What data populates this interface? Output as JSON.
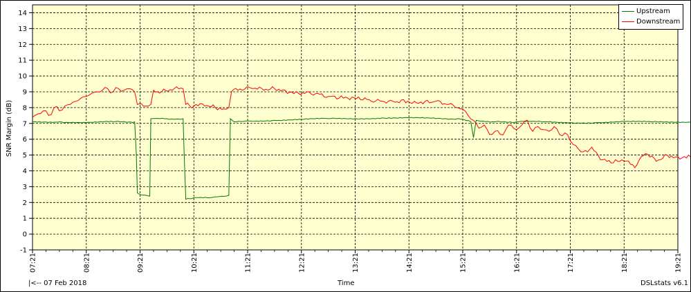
{
  "app": {
    "name": "DSLstats v6.1"
  },
  "footer": {
    "date_label": "|<-- 07 Feb 2018",
    "center_label": "Time",
    "version_label": "DSLstats v6.1"
  },
  "legend": {
    "items": [
      {
        "label": "Upstream",
        "color": "#007a00"
      },
      {
        "label": "Downstream",
        "color": "#ff0000"
      }
    ]
  },
  "chart_data": {
    "type": "line",
    "title": "",
    "xlabel": "Time",
    "ylabel": "SNR Margin (dB)",
    "ylim": [
      -1,
      14.5
    ],
    "y_ticks": [
      -1,
      0,
      1,
      2,
      3,
      4,
      5,
      6,
      7,
      8,
      9,
      10,
      11,
      12,
      13,
      14
    ],
    "x_ticks": [
      "07:21",
      "08:21",
      "09:21",
      "10:21",
      "11:21",
      "12:21",
      "13:21",
      "14:21",
      "15:21",
      "16:21",
      "17:21",
      "18:21",
      "19:21"
    ],
    "grid": true,
    "legend_position": "top-right",
    "background_color": "#ffffd0",
    "series": [
      {
        "name": "Upstream",
        "color": "#007a00",
        "points": [
          [
            0,
            7.1
          ],
          [
            0.5,
            7.1
          ],
          [
            1.0,
            7.05
          ],
          [
            1.5,
            7.1
          ],
          [
            1.9,
            7.1
          ],
          [
            1.93,
            5.0
          ],
          [
            1.95,
            2.6
          ],
          [
            2.0,
            2.5
          ],
          [
            2.18,
            2.4
          ],
          [
            2.2,
            7.3
          ],
          [
            2.5,
            7.3
          ],
          [
            2.8,
            7.3
          ],
          [
            2.82,
            5.0
          ],
          [
            2.85,
            2.2
          ],
          [
            3.0,
            2.3
          ],
          [
            3.3,
            2.3
          ],
          [
            3.6,
            2.4
          ],
          [
            3.65,
            2.45
          ],
          [
            3.68,
            7.3
          ],
          [
            3.75,
            7.1
          ],
          [
            4.0,
            7.15
          ],
          [
            4.5,
            7.2
          ],
          [
            5.0,
            7.25
          ],
          [
            5.5,
            7.3
          ],
          [
            6.0,
            7.3
          ],
          [
            6.5,
            7.35
          ],
          [
            7.0,
            7.35
          ],
          [
            7.5,
            7.3
          ],
          [
            7.9,
            7.3
          ],
          [
            8.15,
            7.1
          ],
          [
            8.2,
            6.1
          ],
          [
            8.25,
            7.2
          ],
          [
            8.6,
            7.1
          ],
          [
            9.0,
            7.1
          ],
          [
            9.5,
            7.1
          ],
          [
            10.0,
            7.05
          ],
          [
            10.5,
            7.05
          ],
          [
            11.0,
            7.1
          ],
          [
            11.5,
            7.1
          ],
          [
            12.0,
            7.1
          ],
          [
            12.5,
            7.1
          ],
          [
            12.9,
            7.2
          ]
        ]
      },
      {
        "name": "Downstream",
        "color": "#ff0000",
        "points": [
          [
            0,
            7.4
          ],
          [
            0.1,
            7.6
          ],
          [
            0.2,
            7.8
          ],
          [
            0.3,
            7.5
          ],
          [
            0.4,
            8.0
          ],
          [
            0.5,
            7.8
          ],
          [
            0.6,
            8.1
          ],
          [
            0.7,
            8.2
          ],
          [
            0.8,
            8.4
          ],
          [
            0.9,
            8.6
          ],
          [
            1.0,
            8.7
          ],
          [
            1.1,
            8.9
          ],
          [
            1.2,
            9.0
          ],
          [
            1.3,
            9.1
          ],
          [
            1.4,
            9.2
          ],
          [
            1.5,
            9.0
          ],
          [
            1.6,
            9.2
          ],
          [
            1.7,
            9.1
          ],
          [
            1.8,
            9.2
          ],
          [
            1.9,
            9.0
          ],
          [
            1.95,
            8.2
          ],
          [
            2.1,
            8.1
          ],
          [
            2.2,
            8.2
          ],
          [
            2.25,
            9.1
          ],
          [
            2.4,
            9.0
          ],
          [
            2.6,
            9.1
          ],
          [
            2.8,
            9.2
          ],
          [
            2.85,
            8.2
          ],
          [
            3.0,
            8.1
          ],
          [
            3.2,
            8.1
          ],
          [
            3.4,
            8.0
          ],
          [
            3.6,
            7.9
          ],
          [
            3.65,
            8.0
          ],
          [
            3.7,
            9.0
          ],
          [
            3.9,
            9.1
          ],
          [
            4.1,
            9.2
          ],
          [
            4.3,
            9.1
          ],
          [
            4.5,
            9.2
          ],
          [
            4.7,
            9.1
          ],
          [
            4.9,
            9.0
          ],
          [
            5.1,
            9.0
          ],
          [
            5.3,
            8.9
          ],
          [
            5.5,
            8.7
          ],
          [
            5.7,
            8.6
          ],
          [
            5.9,
            8.5
          ],
          [
            6.1,
            8.5
          ],
          [
            6.3,
            8.4
          ],
          [
            6.5,
            8.4
          ],
          [
            6.7,
            8.4
          ],
          [
            6.9,
            8.5
          ],
          [
            7.1,
            8.4
          ],
          [
            7.3,
            8.4
          ],
          [
            7.5,
            8.4
          ],
          [
            7.7,
            8.2
          ],
          [
            7.9,
            8.0
          ],
          [
            8.0,
            7.9
          ],
          [
            8.1,
            7.5
          ],
          [
            8.2,
            7.2
          ],
          [
            8.3,
            6.7
          ],
          [
            8.4,
            6.9
          ],
          [
            8.5,
            6.3
          ],
          [
            8.6,
            6.5
          ],
          [
            8.7,
            6.3
          ],
          [
            8.8,
            6.6
          ],
          [
            8.9,
            6.9
          ],
          [
            9.0,
            6.6
          ],
          [
            9.1,
            6.9
          ],
          [
            9.2,
            7.2
          ],
          [
            9.3,
            6.5
          ],
          [
            9.4,
            6.8
          ],
          [
            9.5,
            6.6
          ],
          [
            9.6,
            6.5
          ],
          [
            9.7,
            6.8
          ],
          [
            9.8,
            6.3
          ],
          [
            9.9,
            6.4
          ],
          [
            10.0,
            5.9
          ],
          [
            10.1,
            5.6
          ],
          [
            10.2,
            5.2
          ],
          [
            10.4,
            5.5
          ],
          [
            10.6,
            4.7
          ],
          [
            10.8,
            4.5
          ],
          [
            11.0,
            4.6
          ],
          [
            11.2,
            4.2
          ],
          [
            11.4,
            5.1
          ],
          [
            11.6,
            4.6
          ],
          [
            11.8,
            5.0
          ],
          [
            12.0,
            4.9
          ],
          [
            12.2,
            5.0
          ],
          [
            12.4,
            4.6
          ],
          [
            12.6,
            4.8
          ],
          [
            12.8,
            4.4
          ],
          [
            12.9,
            4.5
          ]
        ]
      }
    ]
  }
}
